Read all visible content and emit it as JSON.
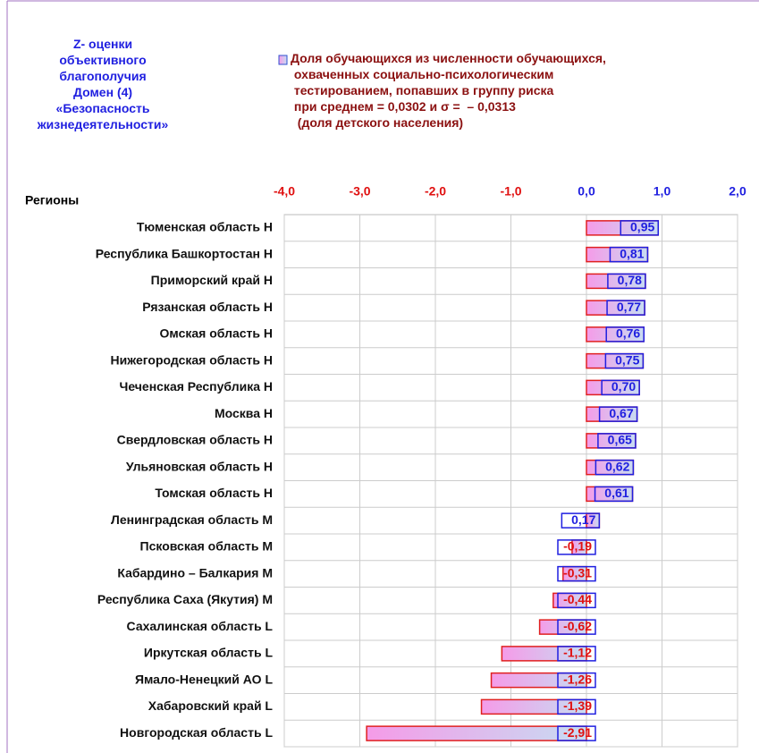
{
  "chart_data": {
    "type": "barh",
    "title": "Z- оценки\nобъективного\nблагополучия\nДомен (4)\n«Безопасность\nжизнедеятельности»",
    "y_label": "Регионы",
    "categories": [
      "Тюменская область Н",
      "Республика Башкортостан Н",
      "Приморский край Н",
      "Рязанская область Н",
      "Омская область Н",
      "Нижегородская область Н",
      "Чеченская Республика Н",
      "Москва Н",
      "Свердловская область Н",
      "Ульяновская область Н",
      "Томская область Н",
      "Ленинградская область М",
      "Псковская область М",
      "Кабардино – Балкария М",
      "Республика Саха (Якутия) М",
      "Сахалинская область L",
      "Иркутская область L",
      "Ямало-Ненецкий АО L",
      "Хабаровский край L",
      "Новгородская область L"
    ],
    "series": [
      {
        "name": "Доля обучающихся из численности обучающихся,\n охваченных социально-психологическим\n тестированием, попавших в группу риска\n при среднем = 0,0302 и σ =  – 0,0313\n  (доля детского населения)",
        "color": "#e8a0e0",
        "values": [
          0.95,
          0.81,
          0.78,
          0.77,
          0.76,
          0.75,
          0.7,
          0.67,
          0.65,
          0.62,
          0.61,
          0.17,
          -0.19,
          -0.31,
          -0.44,
          -0.62,
          -1.12,
          -1.26,
          -1.39,
          -2.91
        ],
        "value_labels": [
          "0,95",
          "0,81",
          "0,78",
          "0,77",
          "0,76",
          "0,75",
          "0,70",
          "0,67",
          "0,65",
          "0,62",
          "0,61",
          "0,17",
          "-0,19",
          "-0,31",
          "-0,44",
          "-0,62",
          "-1,12",
          "-1,26",
          "-1,39",
          "-2,91"
        ]
      }
    ],
    "xlim": [
      -4,
      2
    ],
    "xticks": [
      {
        "value": -4,
        "label": "-4,0"
      },
      {
        "value": -3,
        "label": "-3,0"
      },
      {
        "value": -2,
        "label": "-2,0"
      },
      {
        "value": -1,
        "label": "-1,0"
      },
      {
        "value": 0,
        "label": "0,0"
      },
      {
        "value": 1,
        "label": "1,0"
      },
      {
        "value": 2,
        "label": "2,0"
      }
    ],
    "grid": true
  }
}
